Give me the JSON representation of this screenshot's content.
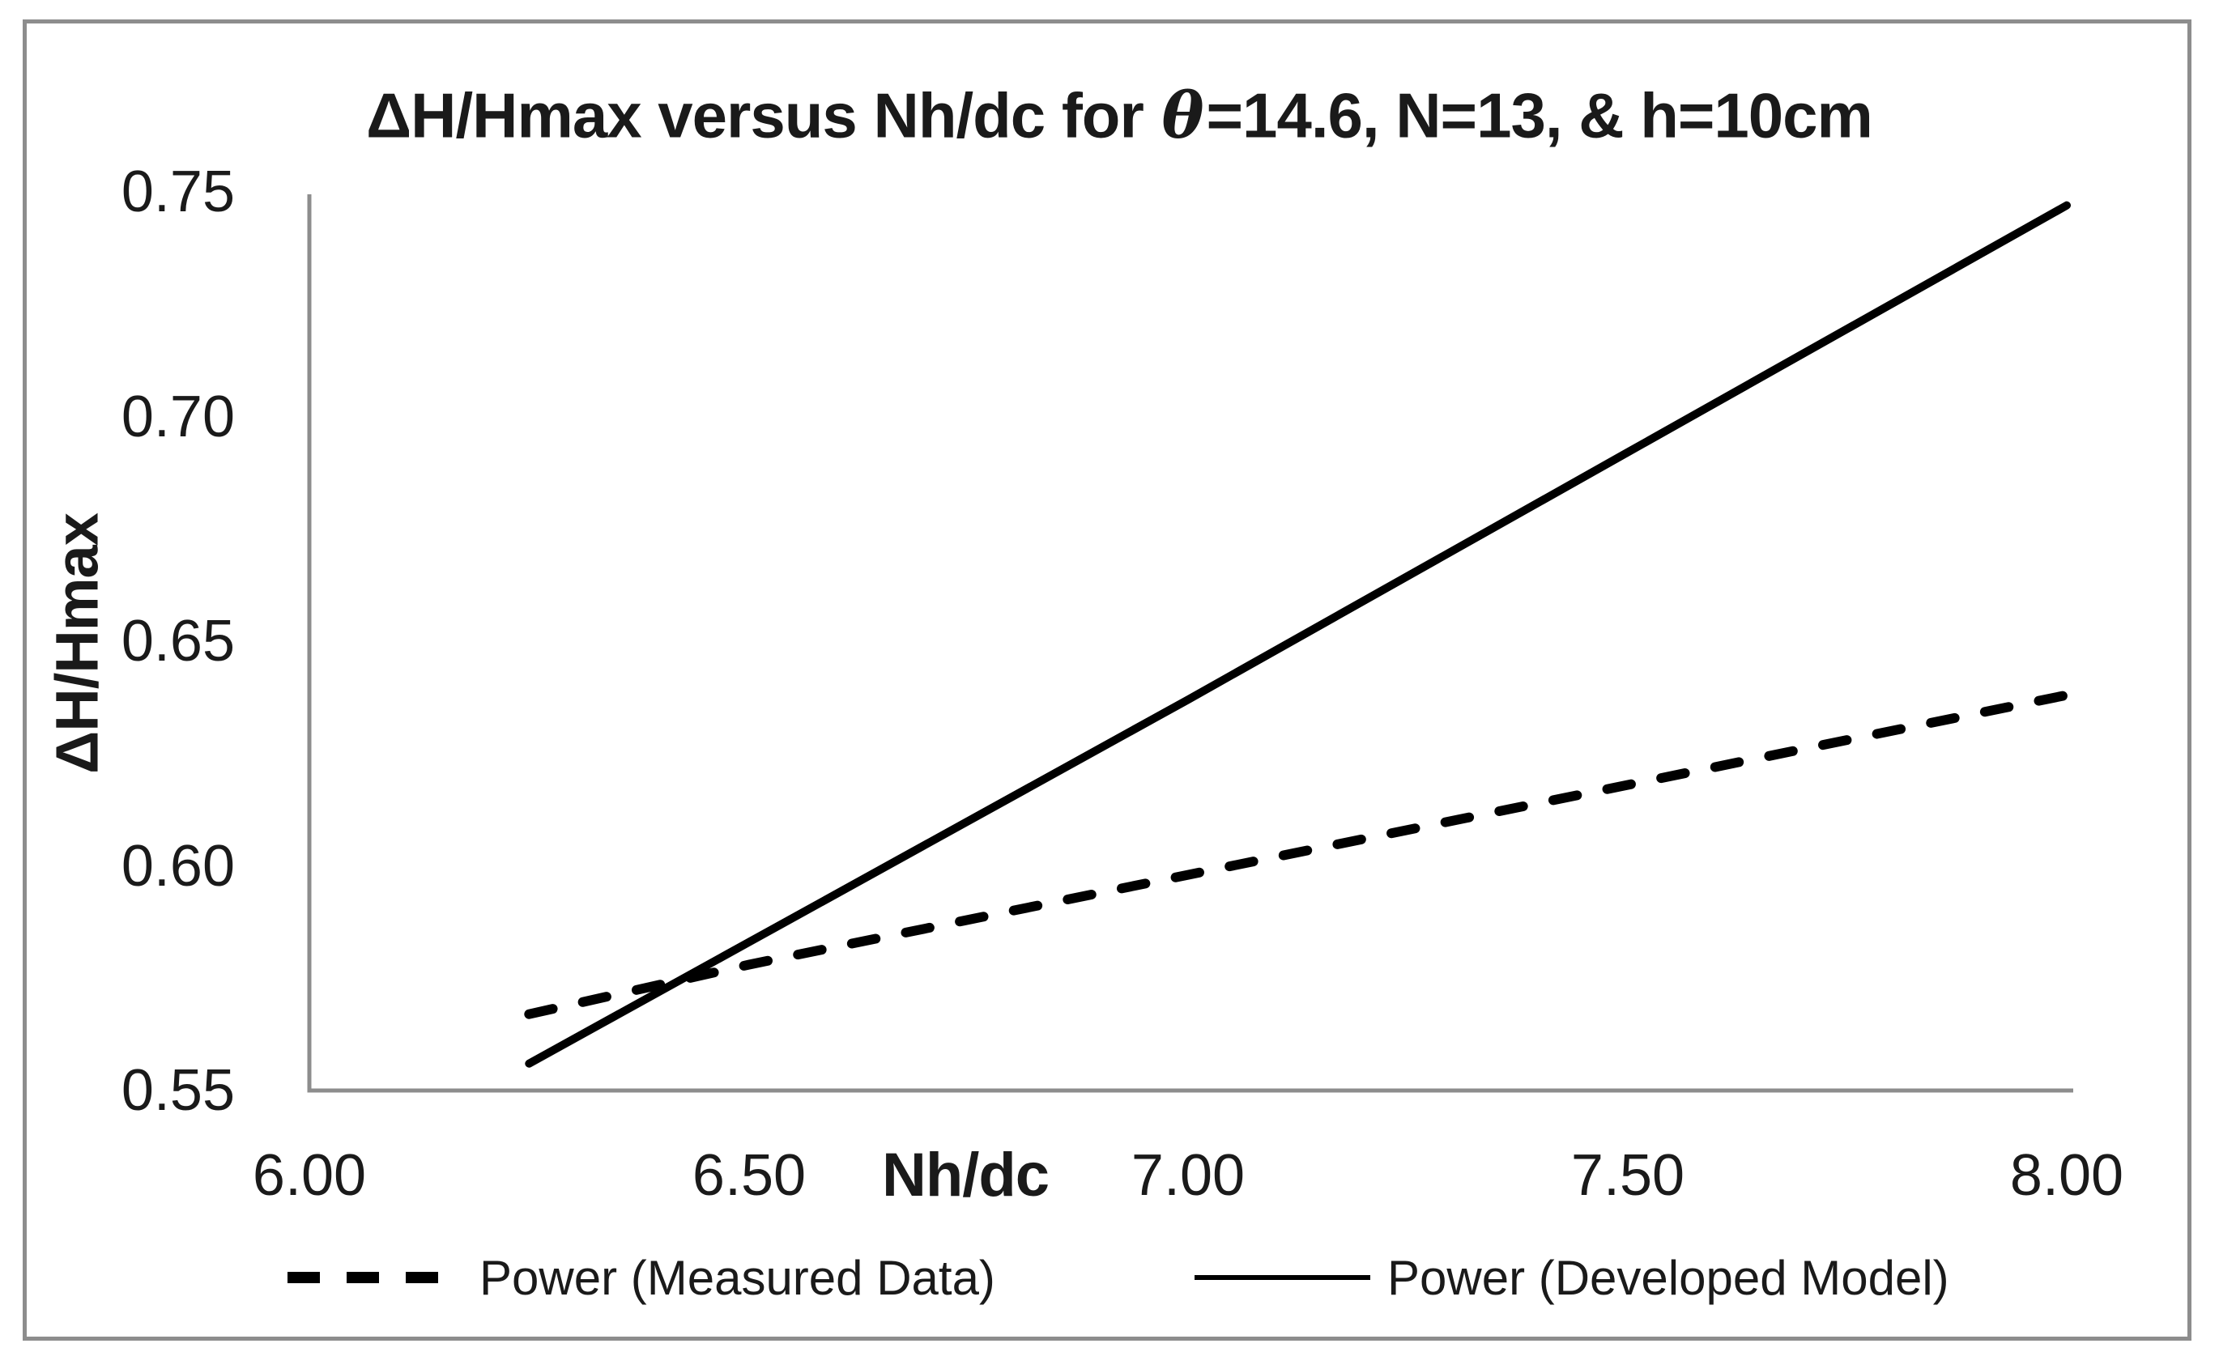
{
  "figure": {
    "title": {
      "part1": "ΔH/Hmax versus Nh/dc for ",
      "theta": "θ",
      "part2": "=14.6, N=13, & h=10cm",
      "full": "ΔH/Hmax versus Nh/dc for θ=14.6, N=13, & h=10cm"
    },
    "y_axis": {
      "title": "ΔH/Hmax",
      "ticks": [
        "0.75",
        "0.70",
        "0.65",
        "0.60",
        "0.55"
      ]
    },
    "x_axis": {
      "title": "Nh/dc",
      "ticks": [
        "6.00",
        "6.50",
        "7.00",
        "7.50",
        "8.00"
      ]
    },
    "legend": [
      {
        "label": "Power (Measured Data)",
        "style": "dashed"
      },
      {
        "label": "Power (Developed Model)",
        "style": "solid"
      }
    ],
    "colors": {
      "series_line": "#000000",
      "axis_line": "#8d8d8d",
      "frame_border": "#8d8d8d",
      "text": "#1a1a1a",
      "background": "#ffffff"
    }
  },
  "chart_data": {
    "type": "line",
    "title": "ΔH/Hmax versus Nh/dc for θ=14.6, N=13, & h=10cm",
    "xlabel": "Nh/dc",
    "ylabel": "ΔH/Hmax",
    "xlim": [
      6.0,
      8.0
    ],
    "ylim": [
      0.55,
      0.75
    ],
    "x_ticks": [
      6.0,
      6.5,
      7.0,
      7.5,
      8.0
    ],
    "y_ticks": [
      0.55,
      0.6,
      0.65,
      0.7,
      0.75
    ],
    "grid": false,
    "legend_position": "bottom",
    "series": [
      {
        "name": "Power (Measured Data)",
        "style": "dashed",
        "fit_type": "power trendline",
        "x": [
          6.25,
          6.5,
          7.0,
          7.5,
          8.0
        ],
        "y": [
          0.567,
          0.578,
          0.598,
          0.618,
          0.638
        ]
      },
      {
        "name": "Power (Developed Model)",
        "style": "solid",
        "fit_type": "power trendline",
        "x": [
          6.25,
          6.5,
          7.0,
          7.5,
          8.0
        ],
        "y": [
          0.556,
          0.583,
          0.637,
          0.692,
          0.747
        ]
      }
    ]
  }
}
